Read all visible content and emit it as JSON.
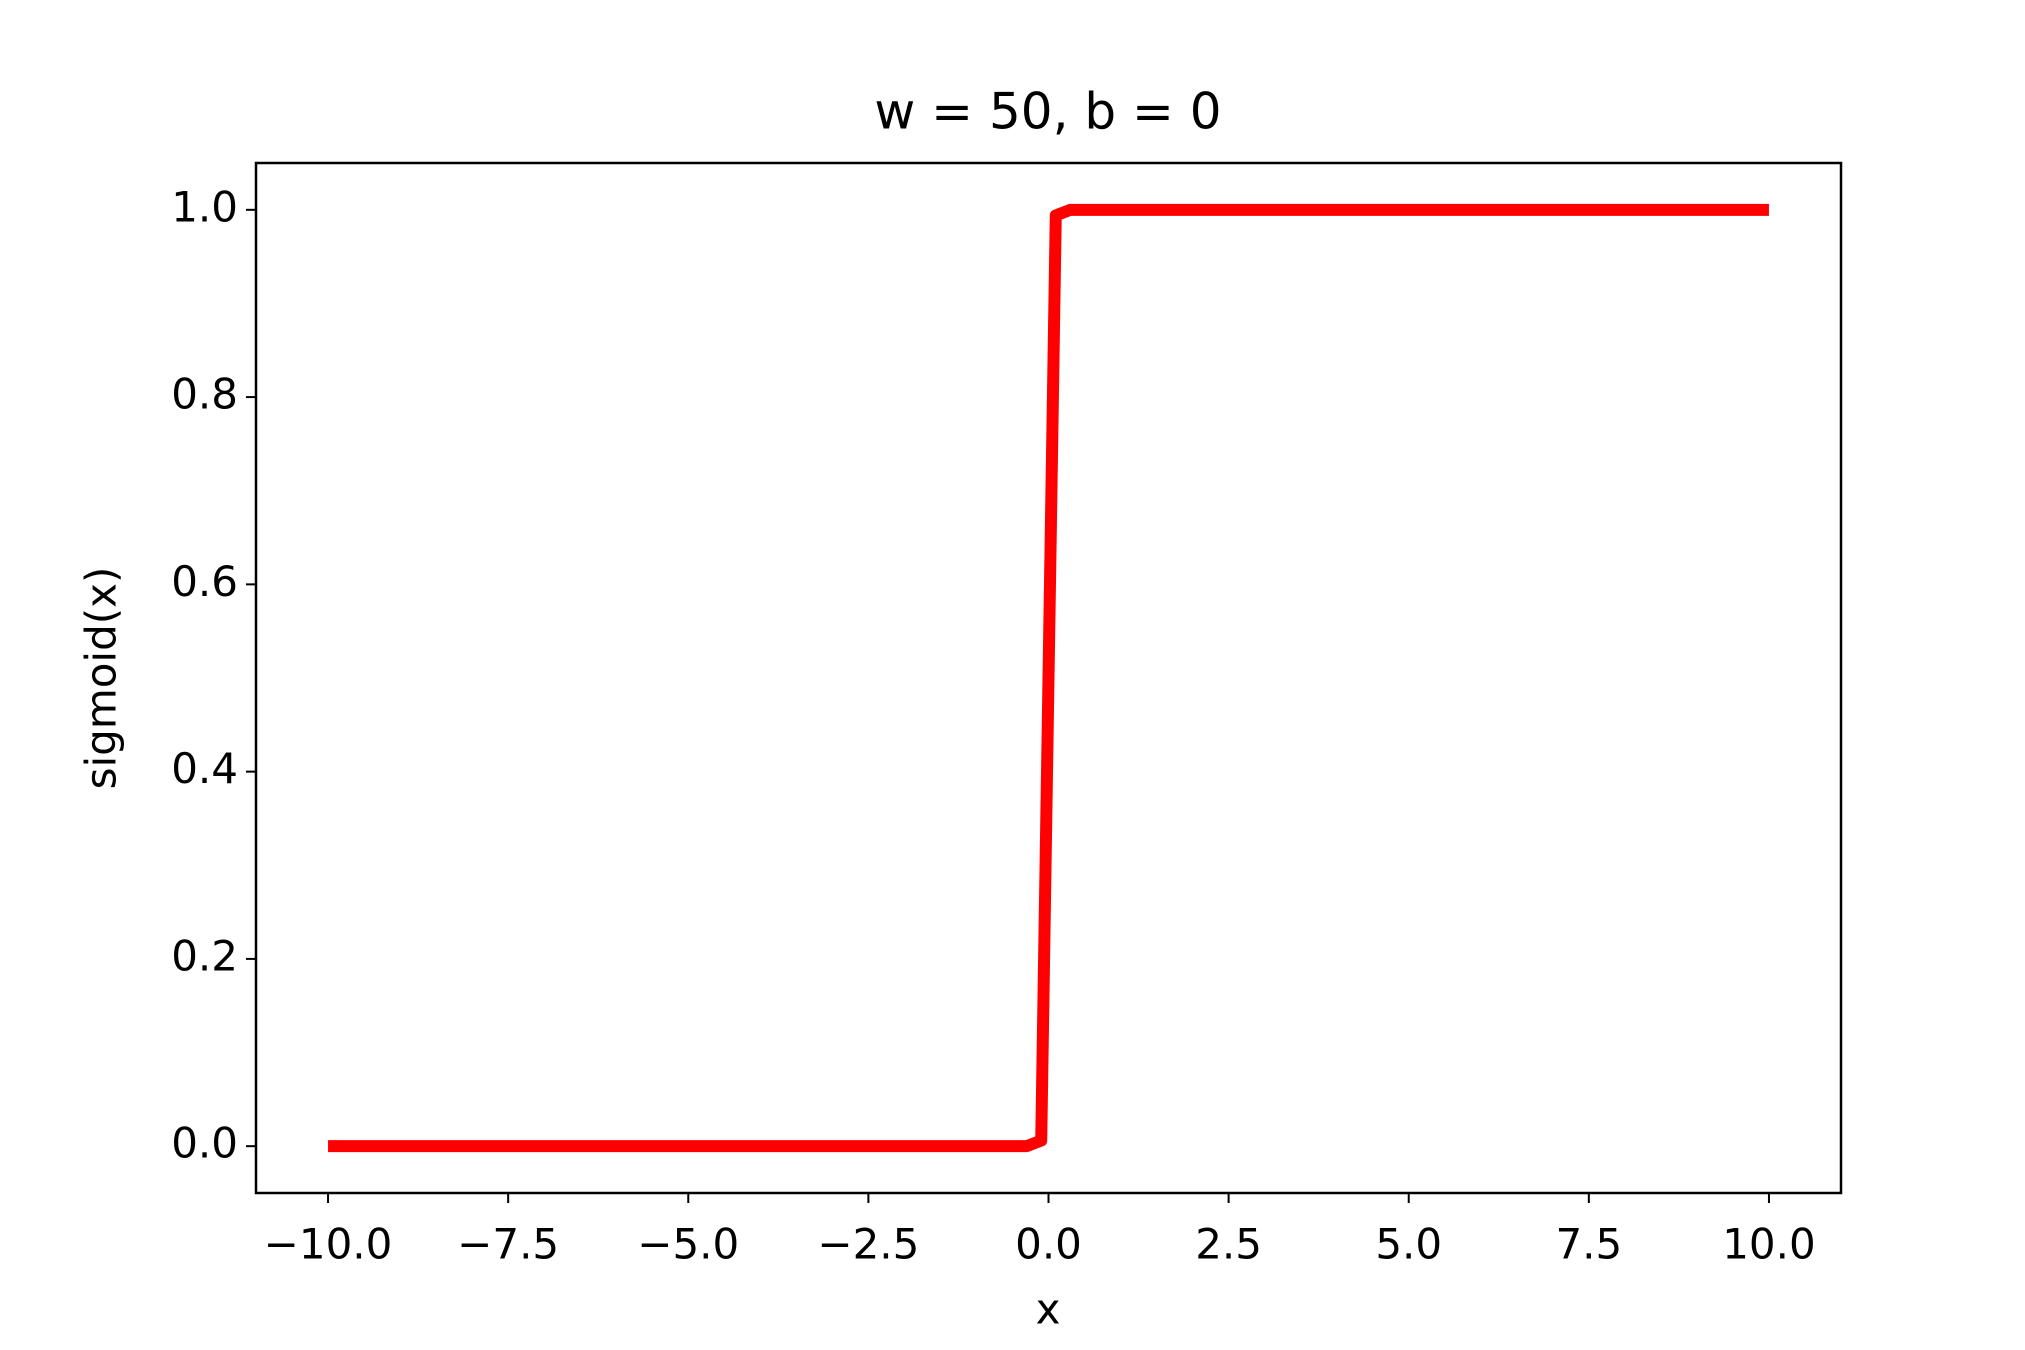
{
  "chart_data": {
    "type": "line",
    "title": "w = 50, b = 0",
    "x_label": "x",
    "y_label": "sigmoid(x)",
    "x": [
      -10,
      -0.303,
      -0.101,
      0.101,
      0.303,
      10
    ],
    "series": [
      {
        "color": "#ff0000",
        "values": [
          0,
          0,
          0.006,
          0.994,
          1,
          1
        ]
      }
    ],
    "xlim": [
      -11,
      11
    ],
    "xticks": [
      {
        "value": -10,
        "label": "−10.0"
      },
      {
        "value": -7.5,
        "label": "−7.5"
      },
      {
        "value": -5,
        "label": "−5.0"
      },
      {
        "value": -2.5,
        "label": "−2.5"
      },
      {
        "value": 0,
        "label": "0.0"
      },
      {
        "value": 2.5,
        "label": "2.5"
      },
      {
        "value": 5,
        "label": "5.0"
      },
      {
        "value": 7.5,
        "label": "7.5"
      },
      {
        "value": 10,
        "label": "10.0"
      }
    ],
    "ylim": [
      -0.05,
      1.05
    ],
    "yticks": [
      {
        "value": 0,
        "label": "0.0"
      },
      {
        "value": 0.2,
        "label": "0.2"
      },
      {
        "value": 0.4,
        "label": "0.4"
      },
      {
        "value": 0.6,
        "label": "0.6"
      },
      {
        "value": 0.8,
        "label": "0.8"
      },
      {
        "value": 1,
        "label": "1.0"
      }
    ],
    "grid": false
  }
}
